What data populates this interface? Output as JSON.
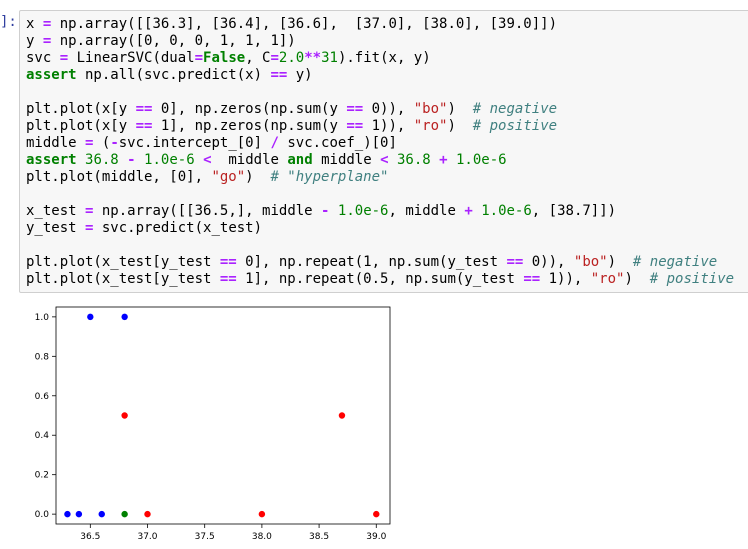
{
  "cell": {
    "prompt": "]:",
    "code_lines": [
      [
        [
          "p",
          "x "
        ],
        [
          "o",
          "="
        ],
        [
          "p",
          " np.array([[36.3], [36.4], [36.6],  [37.0], [38.0], [39.0]])"
        ]
      ],
      [
        [
          "p",
          "y "
        ],
        [
          "o",
          "="
        ],
        [
          "p",
          " np.array([0, 0, 0, 1, 1, 1])"
        ]
      ],
      [
        [
          "p",
          "svc "
        ],
        [
          "o",
          "="
        ],
        [
          "p",
          " LinearSVC(dual"
        ],
        [
          "o",
          "="
        ],
        [
          "k",
          "False"
        ],
        [
          "p",
          ", C"
        ],
        [
          "o",
          "="
        ],
        [
          "n",
          "2.0"
        ],
        [
          "o",
          "**"
        ],
        [
          "n",
          "31"
        ],
        [
          "p",
          ").fit(x, y)"
        ]
      ],
      [
        [
          "k",
          "assert"
        ],
        [
          "p",
          " np.all(svc.predict(x) "
        ],
        [
          "o",
          "=="
        ],
        [
          "p",
          " y)"
        ]
      ],
      [],
      [
        [
          "p",
          "plt.plot(x[y "
        ],
        [
          "o",
          "=="
        ],
        [
          "p",
          " 0], np.zeros(np.sum(y "
        ],
        [
          "o",
          "=="
        ],
        [
          "p",
          " 0)), "
        ],
        [
          "s",
          "\"bo\""
        ],
        [
          "p",
          ")  "
        ],
        [
          "c",
          "# negative"
        ]
      ],
      [
        [
          "p",
          "plt.plot(x[y "
        ],
        [
          "o",
          "=="
        ],
        [
          "p",
          " 1], np.zeros(np.sum(y "
        ],
        [
          "o",
          "=="
        ],
        [
          "p",
          " 1)), "
        ],
        [
          "s",
          "\"ro\""
        ],
        [
          "p",
          ")  "
        ],
        [
          "c",
          "# positive"
        ]
      ],
      [
        [
          "p",
          "middle "
        ],
        [
          "o",
          "="
        ],
        [
          "p",
          " ("
        ],
        [
          "o",
          "-"
        ],
        [
          "p",
          "svc.intercept_[0] "
        ],
        [
          "o",
          "/"
        ],
        [
          "p",
          " svc.coef_)[0]"
        ]
      ],
      [
        [
          "k",
          "assert"
        ],
        [
          "p",
          " "
        ],
        [
          "n",
          "36.8"
        ],
        [
          "p",
          " "
        ],
        [
          "o",
          "-"
        ],
        [
          "p",
          " "
        ],
        [
          "n",
          "1.0e-6"
        ],
        [
          "p",
          " "
        ],
        [
          "o",
          "<"
        ],
        [
          "p",
          "  middle "
        ],
        [
          "k",
          "and"
        ],
        [
          "p",
          " middle "
        ],
        [
          "o",
          "<"
        ],
        [
          "p",
          " "
        ],
        [
          "n",
          "36.8"
        ],
        [
          "p",
          " "
        ],
        [
          "o",
          "+"
        ],
        [
          "p",
          " "
        ],
        [
          "n",
          "1.0e-6"
        ]
      ],
      [
        [
          "p",
          "plt.plot(middle, [0], "
        ],
        [
          "s",
          "\"go\""
        ],
        [
          "p",
          ")  "
        ],
        [
          "c",
          "# \"hyperplane\""
        ]
      ],
      [],
      [
        [
          "p",
          "x_test "
        ],
        [
          "o",
          "="
        ],
        [
          "p",
          " np.array([[36.5,], middle "
        ],
        [
          "o",
          "-"
        ],
        [
          "p",
          " "
        ],
        [
          "n",
          "1.0e-6"
        ],
        [
          "p",
          ", middle "
        ],
        [
          "o",
          "+"
        ],
        [
          "p",
          " "
        ],
        [
          "n",
          "1.0e-6"
        ],
        [
          "p",
          ", [38.7]])"
        ]
      ],
      [
        [
          "p",
          "y_test "
        ],
        [
          "o",
          "="
        ],
        [
          "p",
          " svc.predict(x_test)"
        ]
      ],
      [],
      [
        [
          "p",
          "plt.plot(x_test[y_test "
        ],
        [
          "o",
          "=="
        ],
        [
          "p",
          " 0], np.repeat(1, np.sum(y_test "
        ],
        [
          "o",
          "=="
        ],
        [
          "p",
          " 0)), "
        ],
        [
          "s",
          "\"bo\""
        ],
        [
          "p",
          ")  "
        ],
        [
          "c",
          "# negative"
        ]
      ],
      [
        [
          "p",
          "plt.plot(x_test[y_test "
        ],
        [
          "o",
          "=="
        ],
        [
          "p",
          " 1], np.repeat(0.5, np.sum(y_test "
        ],
        [
          "o",
          "=="
        ],
        [
          "p",
          " 1)), "
        ],
        [
          "s",
          "\"ro\""
        ],
        [
          "p",
          ")  "
        ],
        [
          "c",
          "# positive"
        ]
      ]
    ]
  },
  "chart_data": {
    "type": "scatter",
    "xlim": [
      36.2,
      39.12
    ],
    "ylim": [
      -0.05,
      1.05
    ],
    "x_ticks": [
      36.5,
      37.0,
      37.5,
      38.0,
      38.5,
      39.0
    ],
    "x_tick_labels": [
      "36.5",
      "37.0",
      "37.5",
      "38.0",
      "38.5",
      "39.0"
    ],
    "y_ticks": [
      0.0,
      0.2,
      0.4,
      0.6,
      0.8,
      1.0
    ],
    "y_tick_labels": [
      "0.0",
      "0.2",
      "0.4",
      "0.6",
      "0.8",
      "1.0"
    ],
    "grid": false,
    "series": [
      {
        "color": "#0000ff",
        "x": [
          36.3,
          36.4,
          36.6
        ],
        "y": [
          0,
          0,
          0
        ]
      },
      {
        "color": "#ff0000",
        "x": [
          37.0,
          38.0,
          39.0
        ],
        "y": [
          0,
          0,
          0
        ]
      },
      {
        "color": "#008000",
        "x": [
          36.8
        ],
        "y": [
          0
        ]
      },
      {
        "color": "#0000ff",
        "x": [
          36.5,
          36.8
        ],
        "y": [
          1,
          1
        ]
      },
      {
        "color": "#ff0000",
        "x": [
          36.8,
          38.7
        ],
        "y": [
          0.5,
          0.5
        ]
      }
    ]
  }
}
